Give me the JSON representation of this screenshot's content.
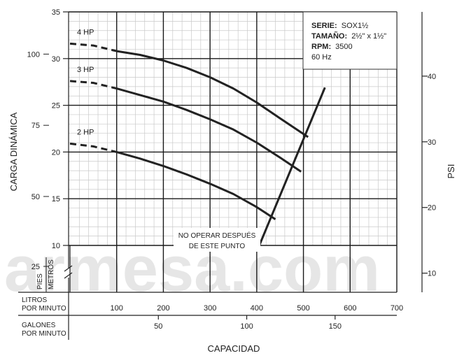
{
  "watermark": "armesa.com",
  "infobox": {
    "serie_label": "SERIE:",
    "serie_value": "SOX1½",
    "tamano_label": "TAMAÑO:",
    "tamano_value": "2½\" x 1½\"",
    "rpm_label": "RPM:",
    "rpm_value": "3500",
    "freq": "60 Hz"
  },
  "annotation": [
    "NO OPERAR DESPUÉS",
    "DE ESTE PUNTO"
  ],
  "chart_data": {
    "type": "line",
    "title": "",
    "xlabel": "CAPACIDAD",
    "ylabel": "CARGA DINÁMICA",
    "y2label": "PSI",
    "x_axis": {
      "unit_label": [
        "LITROS",
        "POR MINUTO"
      ],
      "range": [
        0,
        700
      ],
      "ticks": [
        100,
        200,
        300,
        400,
        500,
        600,
        700
      ]
    },
    "x_axis_secondary": {
      "unit_label": [
        "GALONES",
        "POR MINUTO"
      ],
      "ticks": [
        50,
        100,
        150
      ]
    },
    "y_axis_metros": {
      "unit_label": "METROS",
      "range": [
        8,
        35
      ],
      "ticks": [
        10,
        15,
        20,
        25,
        30,
        35
      ]
    },
    "y_axis_pies": {
      "unit_label": "PIES",
      "ticks": [
        25,
        50,
        75,
        100
      ]
    },
    "y_axis_psi": {
      "ticks": [
        10,
        20,
        30,
        40
      ]
    },
    "axis_break": true,
    "grid": true,
    "series": [
      {
        "name": "4 HP",
        "dashed_until": 90,
        "x": [
          0,
          50,
          100,
          150,
          200,
          250,
          300,
          350,
          400,
          450,
          510
        ],
        "y": [
          31.6,
          31.4,
          30.8,
          30.4,
          29.8,
          29.0,
          28.0,
          26.8,
          25.3,
          23.6,
          21.6
        ]
      },
      {
        "name": "3 HP",
        "dashed_until": 90,
        "x": [
          0,
          50,
          100,
          150,
          200,
          250,
          300,
          350,
          400,
          450,
          495
        ],
        "y": [
          27.6,
          27.4,
          26.8,
          26.1,
          25.4,
          24.5,
          23.5,
          22.4,
          21.0,
          19.4,
          17.9
        ]
      },
      {
        "name": "2 HP",
        "dashed_until": 90,
        "x": [
          0,
          50,
          100,
          150,
          200,
          250,
          300,
          350,
          400,
          440
        ],
        "y": [
          20.9,
          20.6,
          20.0,
          19.3,
          18.5,
          17.6,
          16.6,
          15.5,
          14.1,
          12.8
        ]
      }
    ],
    "end_of_operation_line": {
      "x": [
        403,
        546
      ],
      "y": [
        9.7,
        26.9
      ]
    }
  }
}
